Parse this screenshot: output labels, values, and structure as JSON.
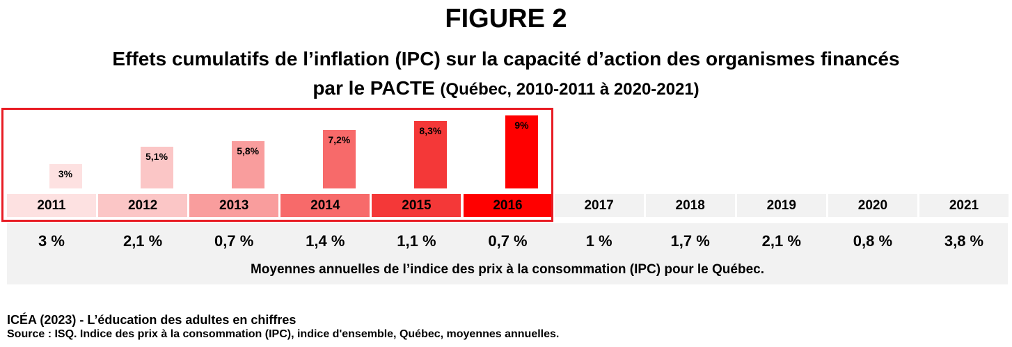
{
  "figure_label": "FIGURE 2",
  "title_main": "Effets cumulatifs de l’inflation (IPC) sur la capacité d’action des organismes financés",
  "title_line2": "par le PACTE",
  "title_sub": "(Québec, 2010-2011 à 2020-2021)",
  "chart_data": {
    "type": "bar",
    "categories": [
      "2011",
      "2012",
      "2013",
      "2014",
      "2015",
      "2016"
    ],
    "values": [
      3,
      5.1,
      5.8,
      7.2,
      8.3,
      9
    ],
    "value_labels": [
      "3%",
      "5,1%",
      "5,8%",
      "7,2%",
      "8,3%",
      "9%"
    ],
    "bar_colors": [
      "#fde1e1",
      "#fbc6c6",
      "#f99d9d",
      "#f76a6a",
      "#f43838",
      "#ff0000"
    ],
    "ylim": [
      0,
      9
    ]
  },
  "years": [
    "2011",
    "2012",
    "2013",
    "2014",
    "2015",
    "2016",
    "2017",
    "2018",
    "2019",
    "2020",
    "2021"
  ],
  "year_colors": [
    "#fde1e1",
    "#fbc6c6",
    "#f99d9d",
    "#f76a6a",
    "#f43838",
    "#ff0000",
    "#f2f2f2",
    "#f2f2f2",
    "#f2f2f2",
    "#f2f2f2",
    "#f2f2f2"
  ],
  "ipc_values": [
    "3 %",
    "2,1 %",
    "0,7 %",
    "1,4 %",
    "1,1 %",
    "0,7 %",
    "1 %",
    "1,7 %",
    "2,1 %",
    "0,8 %",
    "3,8 %"
  ],
  "caption": "Moyennes annuelles de l’indice des prix à la consommation (IPC) pour le Québec.",
  "source_line1": "ICÉA (2023) - L’éducation des adultes en chiffres",
  "source_line2": "Source : ISQ. Indice des prix à la consommation (IPC), indice d'ensemble, Québec, moyennes annuelles.",
  "colors": {
    "frame": "#e81c24",
    "table_bg": "#f2f2f2"
  }
}
